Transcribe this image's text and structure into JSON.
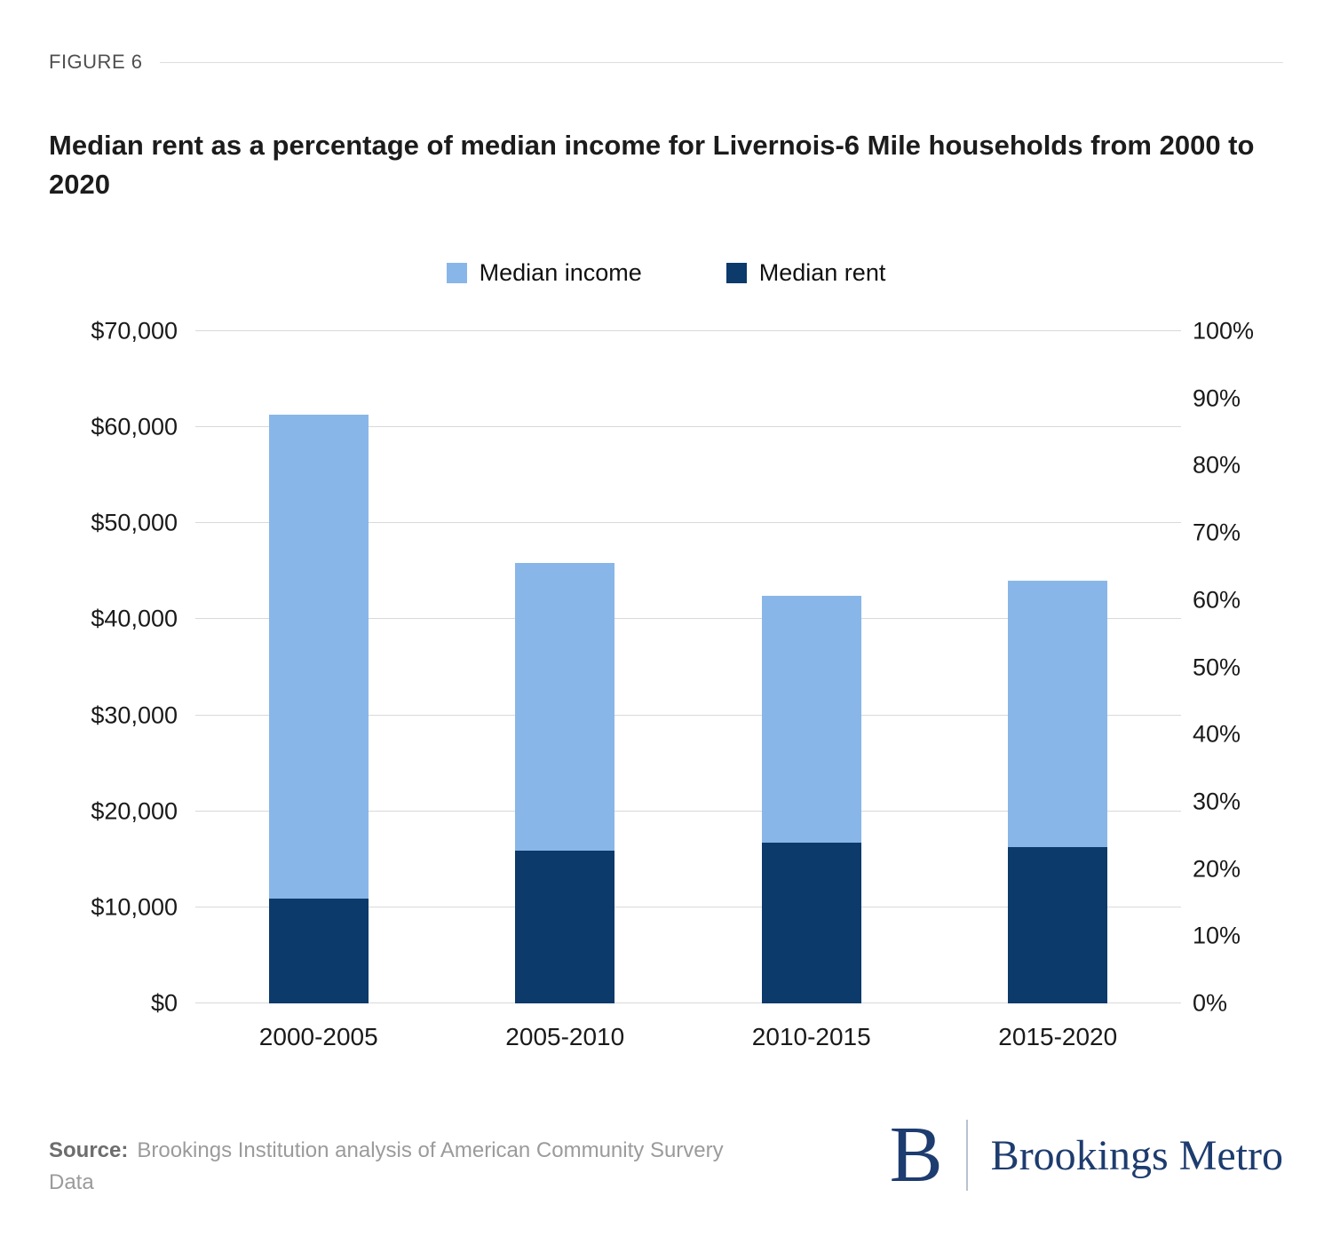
{
  "figure_label": "FIGURE 6",
  "title": "Median rent as a percentage of median income for Livernois-6 Mile households from 2000 to 2020",
  "legend": [
    {
      "label": "Median income",
      "color": "#89B6E8"
    },
    {
      "label": "Median rent",
      "color": "#0B3A6B"
    }
  ],
  "chart_data": {
    "type": "bar",
    "subtype": "overlay-stacked",
    "title": "Median rent as a percentage of median income for Livernois-6 Mile households from 2000 to 2020",
    "categories": [
      "2000-2005",
      "2005-2010",
      "2010-2015",
      "2015-2020"
    ],
    "series": [
      {
        "name": "Median income",
        "color": "#89B6E8",
        "axis": "left",
        "values": [
          61300,
          45900,
          42400,
          44000
        ]
      },
      {
        "name": "Median rent",
        "color": "#0B3A6B",
        "axis": "left",
        "values": [
          10900,
          15900,
          16700,
          16300
        ]
      }
    ],
    "left_axis": {
      "min": 0,
      "max": 70000,
      "ticks": [
        {
          "label": "$70,000",
          "value": 70000
        },
        {
          "label": "$60,000",
          "value": 60000
        },
        {
          "label": "$50,000",
          "value": 50000
        },
        {
          "label": "$40,000",
          "value": 40000
        },
        {
          "label": "$30,000",
          "value": 30000
        },
        {
          "label": "$20,000",
          "value": 20000
        },
        {
          "label": "$10,000",
          "value": 10000
        },
        {
          "label": "$0",
          "value": 0
        }
      ]
    },
    "right_axis": {
      "min": 0,
      "max": 100,
      "ticks": [
        {
          "label": "100%",
          "value": 100
        },
        {
          "label": "90%",
          "value": 90
        },
        {
          "label": "80%",
          "value": 80
        },
        {
          "label": "70%",
          "value": 70
        },
        {
          "label": "60%",
          "value": 60
        },
        {
          "label": "50%",
          "value": 50
        },
        {
          "label": "40%",
          "value": 40
        },
        {
          "label": "30%",
          "value": 30
        },
        {
          "label": "20%",
          "value": 20
        },
        {
          "label": "10%",
          "value": 10
        },
        {
          "label": "0%",
          "value": 0
        }
      ]
    },
    "grid": true,
    "legend_position": "top"
  },
  "source": {
    "label": "Source:",
    "text": "Brookings Institution analysis of American Community Survery Data"
  },
  "logo": {
    "mark": "B",
    "wordmark": "Brookings Metro",
    "color": "#1d3c6f"
  }
}
